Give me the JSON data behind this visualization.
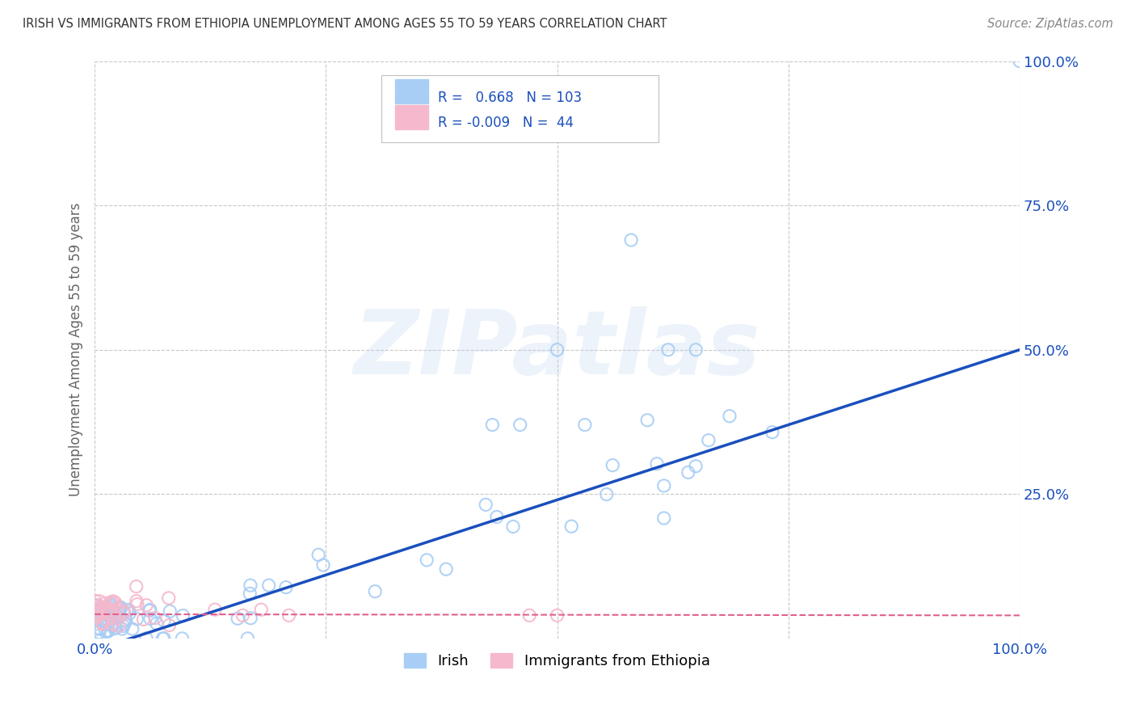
{
  "title": "IRISH VS IMMIGRANTS FROM ETHIOPIA UNEMPLOYMENT AMONG AGES 55 TO 59 YEARS CORRELATION CHART",
  "source": "Source: ZipAtlas.com",
  "ylabel": "Unemployment Among Ages 55 to 59 years",
  "watermark": "ZIPatlas",
  "legend_labels": [
    "Irish",
    "Immigrants from Ethiopia"
  ],
  "irish_R": 0.668,
  "irish_N": 103,
  "ethiopia_R": -0.009,
  "ethiopia_N": 44,
  "irish_color": "#a8cef5",
  "ethiopia_color": "#f5b8cc",
  "irish_line_color": "#1a4fbd",
  "ethiopia_line_color": "#e06090",
  "background_color": "#ffffff",
  "grid_color": "#c8c8c8",
  "title_color": "#333333",
  "irish_slope": 0.52,
  "irish_intercept": -0.02,
  "eth_slope": -0.002,
  "eth_intercept": 0.042
}
